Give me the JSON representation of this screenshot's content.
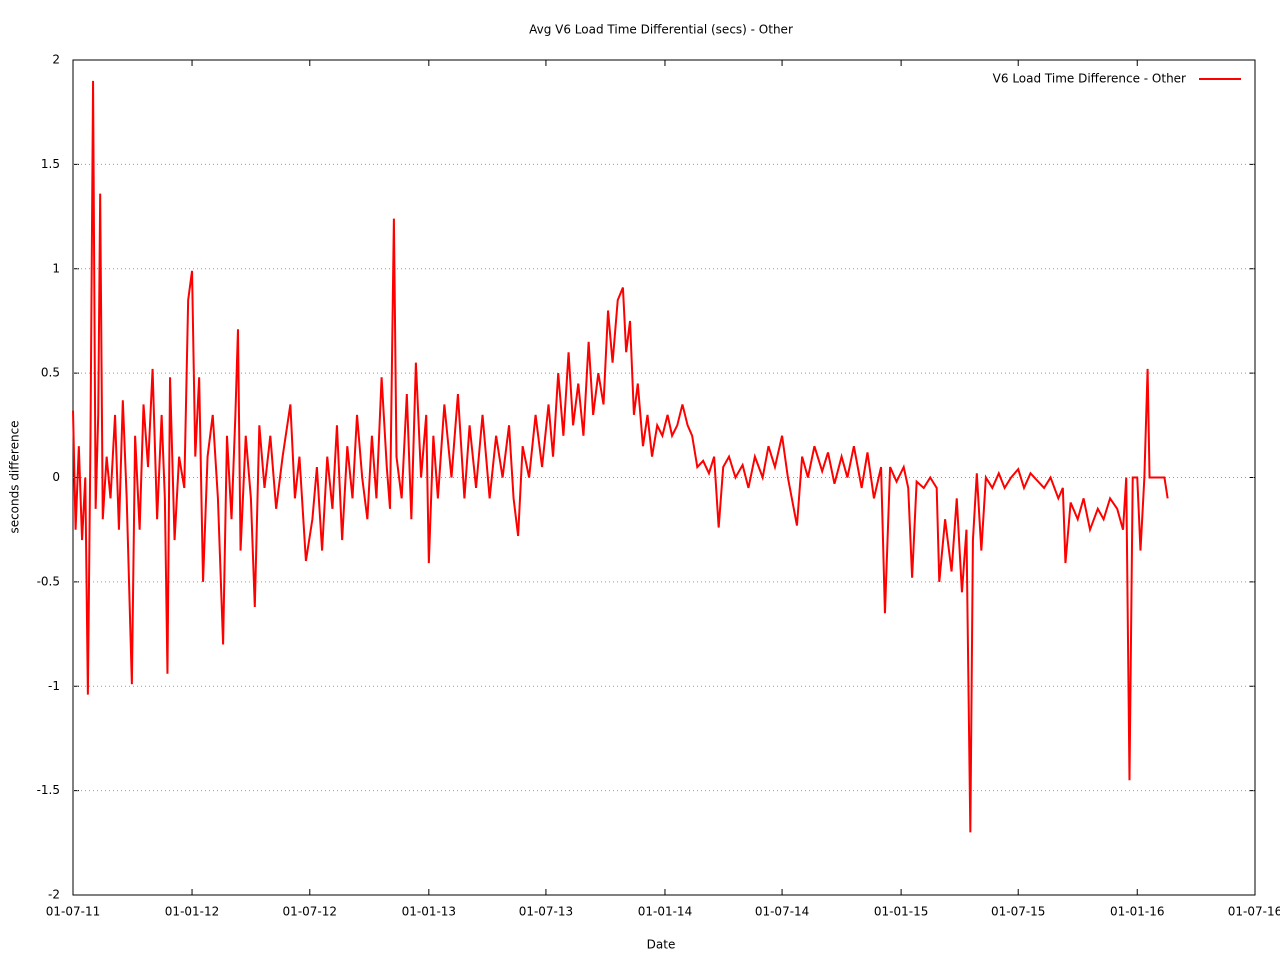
{
  "chart_data": {
    "type": "line",
    "title": "Avg V6 Load Time Differential (secs) - Other",
    "x_label": "Date",
    "y_label": "seconds difference",
    "x": [
      "2011-07-01",
      "2011-07-05",
      "2011-07-10",
      "2011-07-15",
      "2011-07-20",
      "2011-07-24",
      "2011-07-28",
      "2011-08-01",
      "2011-08-05",
      "2011-08-09",
      "2011-08-12",
      "2011-08-16",
      "2011-08-22",
      "2011-08-28",
      "2011-09-04",
      "2011-09-10",
      "2011-09-16",
      "2011-09-22",
      "2011-09-30",
      "2011-10-05",
      "2011-10-12",
      "2011-10-18",
      "2011-10-25",
      "2011-11-01",
      "2011-11-08",
      "2011-11-15",
      "2011-11-20",
      "2011-11-24",
      "2011-11-28",
      "2011-12-05",
      "2011-12-12",
      "2011-12-20",
      "2011-12-26",
      "2012-01-01",
      "2012-01-06",
      "2012-01-12",
      "2012-01-18",
      "2012-01-25",
      "2012-02-02",
      "2012-02-10",
      "2012-02-18",
      "2012-02-24",
      "2012-03-02",
      "2012-03-08",
      "2012-03-12",
      "2012-03-16",
      "2012-03-24",
      "2012-04-01",
      "2012-04-07",
      "2012-04-14",
      "2012-04-22",
      "2012-05-01",
      "2012-05-10",
      "2012-05-20",
      "2012-06-01",
      "2012-06-08",
      "2012-06-15",
      "2012-06-25",
      "2012-07-05",
      "2012-07-12",
      "2012-07-20",
      "2012-07-28",
      "2012-08-05",
      "2012-08-12",
      "2012-08-20",
      "2012-08-28",
      "2012-09-05",
      "2012-09-12",
      "2012-09-20",
      "2012-09-28",
      "2012-10-05",
      "2012-10-12",
      "2012-10-20",
      "2012-10-28",
      "2012-11-02",
      "2012-11-08",
      "2012-11-12",
      "2012-11-20",
      "2012-11-28",
      "2012-12-05",
      "2012-12-12",
      "2012-12-20",
      "2012-12-28",
      "2013-01-01",
      "2013-01-08",
      "2013-01-15",
      "2013-01-25",
      "2013-02-05",
      "2013-02-15",
      "2013-02-25",
      "2013-03-05",
      "2013-03-15",
      "2013-03-25",
      "2013-04-05",
      "2013-04-15",
      "2013-04-25",
      "2013-05-05",
      "2013-05-12",
      "2013-05-19",
      "2013-05-26",
      "2013-06-05",
      "2013-06-15",
      "2013-06-25",
      "2013-07-05",
      "2013-07-12",
      "2013-07-20",
      "2013-07-28",
      "2013-08-05",
      "2013-08-12",
      "2013-08-20",
      "2013-08-28",
      "2013-09-05",
      "2013-09-12",
      "2013-09-20",
      "2013-09-28",
      "2013-10-05",
      "2013-10-12",
      "2013-10-20",
      "2013-10-28",
      "2013-11-02",
      "2013-11-08",
      "2013-11-14",
      "2013-11-20",
      "2013-11-28",
      "2013-12-05",
      "2013-12-12",
      "2013-12-20",
      "2013-12-28",
      "2014-01-05",
      "2014-01-12",
      "2014-01-20",
      "2014-01-28",
      "2014-02-05",
      "2014-02-12",
      "2014-02-20",
      "2014-03-01",
      "2014-03-10",
      "2014-03-18",
      "2014-03-25",
      "2014-04-01",
      "2014-04-10",
      "2014-04-20",
      "2014-05-01",
      "2014-05-10",
      "2014-05-20",
      "2014-06-01",
      "2014-06-10",
      "2014-06-20",
      "2014-07-01",
      "2014-07-10",
      "2014-07-24",
      "2014-08-01",
      "2014-08-10",
      "2014-08-20",
      "2014-09-01",
      "2014-09-10",
      "2014-09-20",
      "2014-10-01",
      "2014-10-10",
      "2014-10-20",
      "2014-11-01",
      "2014-11-10",
      "2014-11-20",
      "2014-12-01",
      "2014-12-07",
      "2014-12-15",
      "2014-12-25",
      "2015-01-05",
      "2015-01-12",
      "2015-01-18",
      "2015-01-25",
      "2015-02-05",
      "2015-02-15",
      "2015-02-25",
      "2015-03-01",
      "2015-03-10",
      "2015-03-20",
      "2015-03-28",
      "2015-04-05",
      "2015-04-12",
      "2015-04-18",
      "2015-04-22",
      "2015-04-28",
      "2015-05-05",
      "2015-05-12",
      "2015-05-22",
      "2015-06-01",
      "2015-06-10",
      "2015-06-20",
      "2015-07-01",
      "2015-07-10",
      "2015-07-20",
      "2015-08-01",
      "2015-08-10",
      "2015-08-20",
      "2015-09-01",
      "2015-09-08",
      "2015-09-12",
      "2015-09-20",
      "2015-10-01",
      "2015-10-10",
      "2015-10-20",
      "2015-11-01",
      "2015-11-10",
      "2015-11-20",
      "2015-12-01",
      "2015-12-10",
      "2015-12-15",
      "2015-12-20",
      "2015-12-25",
      "2016-01-01",
      "2016-01-06",
      "2016-01-12",
      "2016-01-17",
      "2016-01-20",
      "2016-02-01",
      "2016-02-12",
      "2016-02-17"
    ],
    "series": [
      {
        "name": "V6 Load Time Difference - Other",
        "color": "#ff0000",
        "values": [
          0.32,
          -0.25,
          0.15,
          -0.3,
          0.0,
          -1.04,
          0.18,
          1.9,
          -0.15,
          0.3,
          1.36,
          -0.2,
          0.1,
          -0.1,
          0.3,
          -0.25,
          0.37,
          -0.1,
          -0.99,
          0.2,
          -0.25,
          0.35,
          0.05,
          0.52,
          -0.2,
          0.3,
          -0.1,
          -0.94,
          0.48,
          -0.3,
          0.1,
          -0.05,
          0.85,
          0.99,
          0.1,
          0.48,
          -0.5,
          0.1,
          0.3,
          -0.1,
          -0.8,
          0.2,
          -0.2,
          0.3,
          0.71,
          -0.35,
          0.2,
          -0.1,
          -0.62,
          0.25,
          -0.05,
          0.2,
          -0.15,
          0.1,
          0.35,
          -0.1,
          0.1,
          -0.4,
          -0.2,
          0.05,
          -0.35,
          0.1,
          -0.15,
          0.25,
          -0.3,
          0.15,
          -0.1,
          0.3,
          0.0,
          -0.2,
          0.2,
          -0.1,
          0.48,
          0.05,
          -0.15,
          1.24,
          0.1,
          -0.1,
          0.4,
          -0.2,
          0.55,
          0.0,
          0.3,
          -0.41,
          0.2,
          -0.1,
          0.35,
          0.0,
          0.4,
          -0.1,
          0.25,
          -0.05,
          0.3,
          -0.1,
          0.2,
          0.0,
          0.25,
          -0.1,
          -0.28,
          0.15,
          0.0,
          0.3,
          0.05,
          0.35,
          0.1,
          0.5,
          0.2,
          0.6,
          0.25,
          0.45,
          0.2,
          0.65,
          0.3,
          0.5,
          0.35,
          0.8,
          0.55,
          0.85,
          0.91,
          0.6,
          0.75,
          0.3,
          0.45,
          0.15,
          0.3,
          0.1,
          0.25,
          0.2,
          0.3,
          0.2,
          0.25,
          0.35,
          0.25,
          0.2,
          0.05,
          0.08,
          0.02,
          0.1,
          -0.24,
          0.05,
          0.1,
          0.0,
          0.06,
          -0.05,
          0.1,
          0.0,
          0.15,
          0.05,
          0.2,
          0.0,
          -0.23,
          0.1,
          0.0,
          0.15,
          0.03,
          0.12,
          -0.03,
          0.1,
          0.0,
          0.15,
          -0.05,
          0.12,
          -0.1,
          0.05,
          -0.65,
          0.05,
          -0.02,
          0.05,
          -0.05,
          -0.48,
          -0.02,
          -0.05,
          0.0,
          -0.05,
          -0.5,
          -0.2,
          -0.45,
          -0.1,
          -0.55,
          -0.25,
          -1.7,
          -0.3,
          0.02,
          -0.35,
          0.0,
          -0.05,
          0.02,
          -0.05,
          0.0,
          0.04,
          -0.05,
          0.02,
          -0.02,
          -0.05,
          0.0,
          -0.1,
          -0.05,
          -0.41,
          -0.12,
          -0.2,
          -0.1,
          -0.25,
          -0.15,
          -0.2,
          -0.1,
          -0.15,
          -0.25,
          0.0,
          -1.45,
          0.0,
          0.0,
          -0.35,
          0.0,
          0.52,
          0.0,
          0.0,
          0.0,
          -0.1
        ]
      }
    ],
    "xlim": [
      "2011-07-01",
      "2016-07-01"
    ],
    "xticks": [
      {
        "value": "2011-07-01",
        "label": "01-07-11"
      },
      {
        "value": "2012-01-01",
        "label": "01-01-12"
      },
      {
        "value": "2012-07-01",
        "label": "01-07-12"
      },
      {
        "value": "2013-01-01",
        "label": "01-01-13"
      },
      {
        "value": "2013-07-01",
        "label": "01-07-13"
      },
      {
        "value": "2014-01-01",
        "label": "01-01-14"
      },
      {
        "value": "2014-07-01",
        "label": "01-07-14"
      },
      {
        "value": "2015-01-01",
        "label": "01-01-15"
      },
      {
        "value": "2015-07-01",
        "label": "01-07-15"
      },
      {
        "value": "2016-01-01",
        "label": "01-01-16"
      },
      {
        "value": "2016-07-01",
        "label": "01-07-16"
      }
    ],
    "ylim": [
      -2,
      2
    ],
    "yticks": [
      -2,
      -1.5,
      -1,
      -0.5,
      0,
      0.5,
      1,
      1.5,
      2
    ],
    "grid": true,
    "legend": "top-right"
  }
}
